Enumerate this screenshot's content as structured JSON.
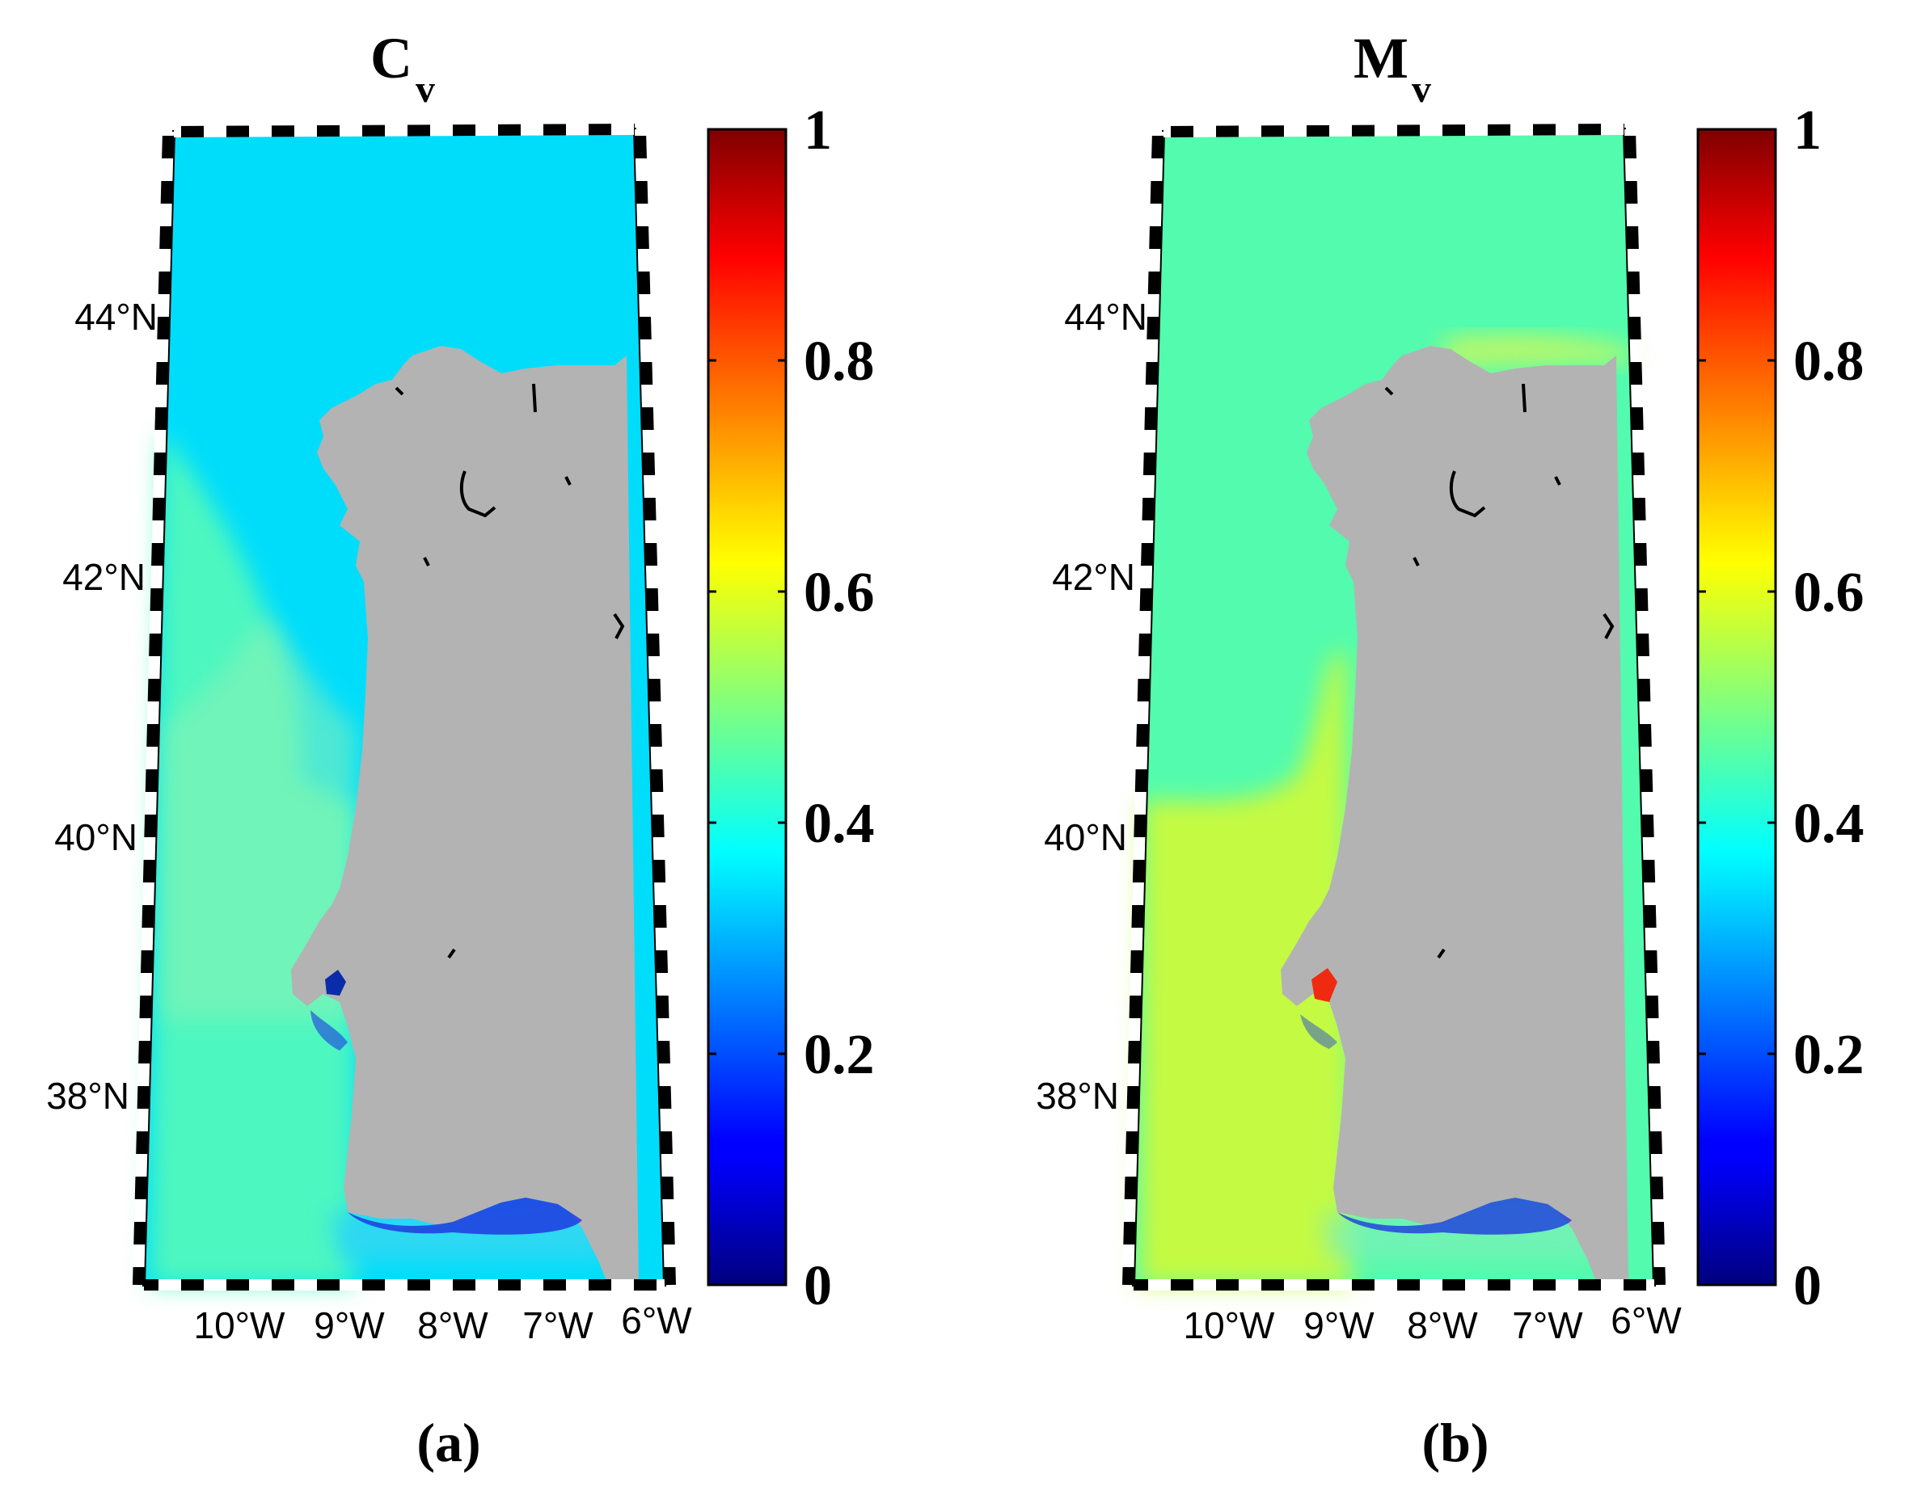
{
  "panels": [
    {
      "id": "a",
      "title_main": "C",
      "title_sub": "v",
      "caption": "(a)",
      "colors": {
        "ocean": "#00DDFB",
        "ocean_far": "#4DF7C0",
        "ocean_shelf": "#8EF2B4",
        "ocean_south": "#2ED8F2",
        "bay_low": "#1E3AE0",
        "estuary": "#0A2CA8",
        "land": "#B3B3B3"
      }
    },
    {
      "id": "b",
      "title_main": "M",
      "title_sub": "v",
      "caption": "(b)",
      "colors": {
        "ocean": "#52FBAE",
        "ocean_far": "#C4FA42",
        "ocean_shelf": "#B8F86A",
        "ocean_south": "#7EF0B8",
        "bay_low": "#1E3AE0",
        "estuary": "#F02A10",
        "land": "#B3B3B3"
      }
    }
  ],
  "latitude_labels": [
    "44°N",
    "42°N",
    "40°N",
    "38°N"
  ],
  "longitude_labels": [
    "10°W",
    "9°W",
    "8°W",
    "7°W",
    "6°W"
  ],
  "colorbar": {
    "min": 0,
    "max": 1,
    "ticks": [
      "0",
      "0.2",
      "0.4",
      "0.6",
      "0.8",
      "1"
    ],
    "colormap": "jet"
  }
}
